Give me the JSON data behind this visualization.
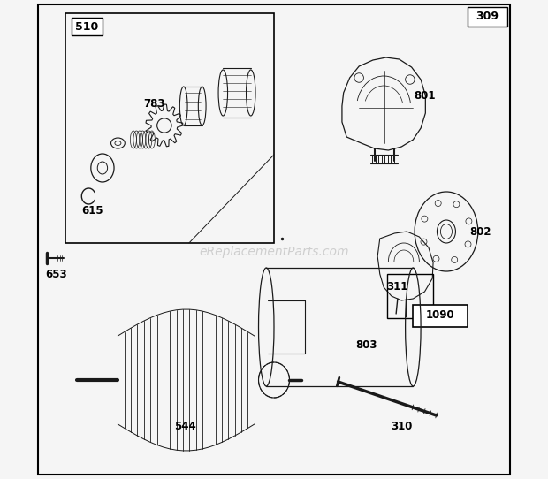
{
  "bg_color": "#f5f5f5",
  "border_color": "#000000",
  "lc": "#1a1a1a",
  "watermark": "eReplacementParts.com",
  "watermark_color": "#c8c8c8",
  "figw": 6.2,
  "figh": 5.42,
  "dpi": 100
}
